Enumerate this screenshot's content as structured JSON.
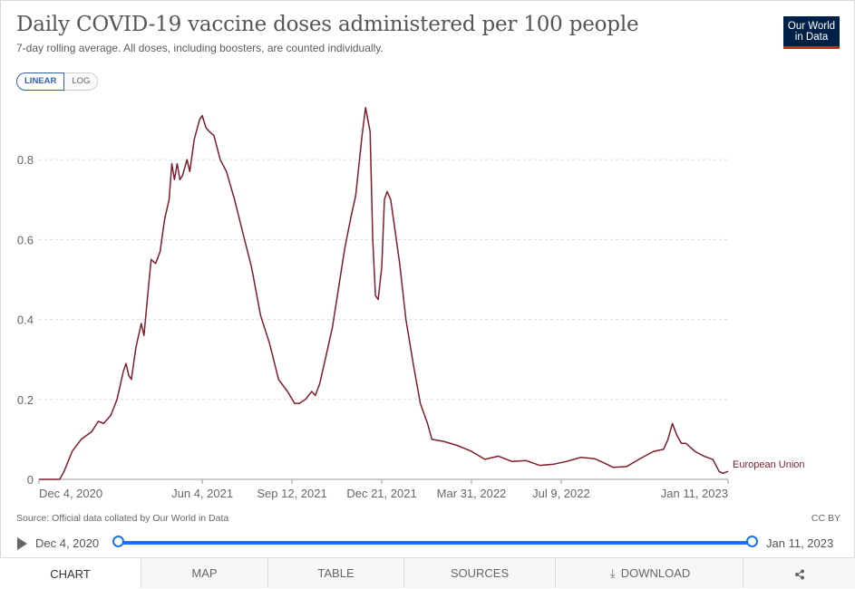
{
  "header": {
    "title": "Daily COVID-19 vaccine doses administered per 100 people",
    "subtitle": "7-day rolling average. All doses, including boosters, are counted individually.",
    "logo_line1": "Our World",
    "logo_line2": "in Data"
  },
  "scale_toggle": {
    "linear": "LINEAR",
    "log": "LOG",
    "selected": "LINEAR"
  },
  "chart_data": {
    "type": "line",
    "title": "Daily COVID-19 vaccine doses administered per 100 people",
    "xlabel": "",
    "ylabel": "",
    "x_ticks": [
      "Dec 4, 2020",
      "Jun 4, 2021",
      "Sep 12, 2021",
      "Dec 21, 2021",
      "Mar 31, 2022",
      "Jul 9, 2022",
      "Jan 11, 2023"
    ],
    "y_ticks": [
      "0",
      "0.2",
      "0.4",
      "0.6",
      "0.8"
    ],
    "ylim": [
      0,
      0.95
    ],
    "xlim": [
      "2020-12-04",
      "2023-01-11"
    ],
    "grid": "horizontal dashed",
    "series": [
      {
        "name": "European Union",
        "color": "#7f1d2b",
        "points": [
          [
            "2020-12-04",
            0.0
          ],
          [
            "2020-12-27",
            0.0
          ],
          [
            "2021-01-01",
            0.02
          ],
          [
            "2021-01-10",
            0.07
          ],
          [
            "2021-01-20",
            0.1
          ],
          [
            "2021-02-01",
            0.12
          ],
          [
            "2021-02-08",
            0.145
          ],
          [
            "2021-02-14",
            0.14
          ],
          [
            "2021-02-22",
            0.16
          ],
          [
            "2021-03-01",
            0.2
          ],
          [
            "2021-03-08",
            0.27
          ],
          [
            "2021-03-11",
            0.29
          ],
          [
            "2021-03-14",
            0.26
          ],
          [
            "2021-03-17",
            0.25
          ],
          [
            "2021-03-22",
            0.33
          ],
          [
            "2021-03-28",
            0.39
          ],
          [
            "2021-03-31",
            0.36
          ],
          [
            "2021-04-05",
            0.48
          ],
          [
            "2021-04-08",
            0.55
          ],
          [
            "2021-04-13",
            0.54
          ],
          [
            "2021-04-18",
            0.57
          ],
          [
            "2021-04-23",
            0.65
          ],
          [
            "2021-04-28",
            0.7
          ],
          [
            "2021-05-01",
            0.79
          ],
          [
            "2021-05-04",
            0.75
          ],
          [
            "2021-05-07",
            0.79
          ],
          [
            "2021-05-10",
            0.75
          ],
          [
            "2021-05-13",
            0.76
          ],
          [
            "2021-05-18",
            0.8
          ],
          [
            "2021-05-21",
            0.77
          ],
          [
            "2021-05-26",
            0.85
          ],
          [
            "2021-06-01",
            0.9
          ],
          [
            "2021-06-04",
            0.91
          ],
          [
            "2021-06-08",
            0.88
          ],
          [
            "2021-06-12",
            0.87
          ],
          [
            "2021-06-17",
            0.86
          ],
          [
            "2021-06-24",
            0.8
          ],
          [
            "2021-07-01",
            0.77
          ],
          [
            "2021-07-10",
            0.7
          ],
          [
            "2021-07-20",
            0.61
          ],
          [
            "2021-07-29",
            0.53
          ],
          [
            "2021-08-08",
            0.41
          ],
          [
            "2021-08-18",
            0.34
          ],
          [
            "2021-08-28",
            0.25
          ],
          [
            "2021-09-07",
            0.22
          ],
          [
            "2021-09-15",
            0.19
          ],
          [
            "2021-09-20",
            0.19
          ],
          [
            "2021-09-27",
            0.2
          ],
          [
            "2021-10-04",
            0.22
          ],
          [
            "2021-10-08",
            0.21
          ],
          [
            "2021-10-13",
            0.24
          ],
          [
            "2021-10-20",
            0.31
          ],
          [
            "2021-10-27",
            0.38
          ],
          [
            "2021-11-03",
            0.48
          ],
          [
            "2021-11-10",
            0.58
          ],
          [
            "2021-11-17",
            0.66
          ],
          [
            "2021-11-22",
            0.71
          ],
          [
            "2021-11-29",
            0.86
          ],
          [
            "2021-12-03",
            0.93
          ],
          [
            "2021-12-08",
            0.87
          ],
          [
            "2021-12-11",
            0.6
          ],
          [
            "2021-12-14",
            0.46
          ],
          [
            "2021-12-17",
            0.45
          ],
          [
            "2021-12-21",
            0.53
          ],
          [
            "2021-12-24",
            0.7
          ],
          [
            "2021-12-27",
            0.72
          ],
          [
            "2021-12-31",
            0.7
          ],
          [
            "2022-01-05",
            0.62
          ],
          [
            "2022-01-10",
            0.54
          ],
          [
            "2022-01-17",
            0.4
          ],
          [
            "2022-01-25",
            0.29
          ],
          [
            "2022-02-02",
            0.19
          ],
          [
            "2022-02-10",
            0.14
          ],
          [
            "2022-02-15",
            0.1
          ],
          [
            "2022-02-28",
            0.095
          ],
          [
            "2022-03-15",
            0.085
          ],
          [
            "2022-03-31",
            0.07
          ],
          [
            "2022-04-15",
            0.05
          ],
          [
            "2022-04-30",
            0.058
          ],
          [
            "2022-05-15",
            0.045
          ],
          [
            "2022-05-31",
            0.047
          ],
          [
            "2022-06-15",
            0.035
          ],
          [
            "2022-07-01",
            0.038
          ],
          [
            "2022-07-15",
            0.045
          ],
          [
            "2022-07-31",
            0.055
          ],
          [
            "2022-08-15",
            0.052
          ],
          [
            "2022-08-27",
            0.04
          ],
          [
            "2022-09-05",
            0.03
          ],
          [
            "2022-09-20",
            0.032
          ],
          [
            "2022-10-05",
            0.052
          ],
          [
            "2022-10-20",
            0.07
          ],
          [
            "2022-10-31",
            0.075
          ],
          [
            "2022-11-05",
            0.1
          ],
          [
            "2022-11-10",
            0.14
          ],
          [
            "2022-11-15",
            0.11
          ],
          [
            "2022-11-20",
            0.09
          ],
          [
            "2022-11-25",
            0.09
          ],
          [
            "2022-12-05",
            0.07
          ],
          [
            "2022-12-15",
            0.058
          ],
          [
            "2022-12-25",
            0.05
          ],
          [
            "2023-01-01",
            0.02
          ],
          [
            "2023-01-05",
            0.015
          ],
          [
            "2023-01-11",
            0.02
          ]
        ]
      }
    ]
  },
  "footer": {
    "source": "Source: Official data collated by Our World in Data",
    "license": "CC BY"
  },
  "timeline": {
    "start": "Dec 4, 2020",
    "end": "Jan 11, 2023"
  },
  "tabs": {
    "chart": "CHART",
    "map": "MAP",
    "table": "TABLE",
    "sources": "SOURCES",
    "download": "DOWNLOAD",
    "share_icon": "share-icon",
    "download_icon": "download-icon",
    "active": "CHART"
  },
  "colors": {
    "series": "#7f1d2b",
    "accent": "#1a73e8",
    "logo_bg": "#002147",
    "logo_bar": "#ce261e"
  }
}
